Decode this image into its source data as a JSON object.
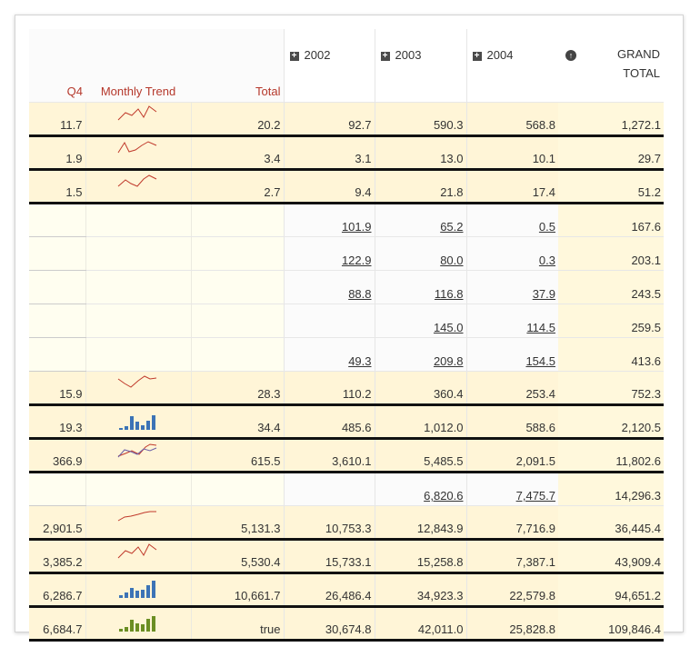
{
  "headers": {
    "q4": "Q4",
    "trend": "Monthly Trend",
    "total": "Total",
    "y2002": "2002",
    "y2003": "2003",
    "y2004": "2004",
    "grand_line1": "GRAND",
    "grand_line2": "TOTAL",
    "expand_glyph": "+",
    "sort_glyph": "↑"
  },
  "rows": [
    {
      "q4": "11.7",
      "total": "20.2",
      "y2002": "92.7",
      "y2003": "590.3",
      "y2004": "568.8",
      "grand": "1,272.1",
      "spark": "line"
    },
    {
      "q4": "1.9",
      "total": "3.4",
      "y2002": "3.1",
      "y2003": "13.0",
      "y2004": "10.1",
      "grand": "29.7",
      "spark": "line"
    },
    {
      "q4": "1.5",
      "total": "2.7",
      "y2002": "9.4",
      "y2003": "21.8",
      "y2004": "17.4",
      "grand": "51.2",
      "spark": "line"
    },
    {
      "q4": "",
      "total": "",
      "y2002": "101.9",
      "y2003": "65.2",
      "y2004": "0.5",
      "grand": "167.6",
      "spark": ""
    },
    {
      "q4": "",
      "total": "",
      "y2002": "122.9",
      "y2003": "80.0",
      "y2004": "0.3",
      "grand": "203.1",
      "spark": ""
    },
    {
      "q4": "",
      "total": "",
      "y2002": "88.8",
      "y2003": "116.8",
      "y2004": "37.9",
      "grand": "243.5",
      "spark": ""
    },
    {
      "q4": "",
      "total": "",
      "y2002": "",
      "y2003": "145.0",
      "y2004": "114.5",
      "grand": "259.5",
      "spark": ""
    },
    {
      "q4": "",
      "total": "",
      "y2002": "49.3",
      "y2003": "209.8",
      "y2004": "154.5",
      "grand": "413.6",
      "spark": ""
    },
    {
      "q4": "15.9",
      "total": "28.3",
      "y2002": "110.2",
      "y2003": "360.4",
      "y2004": "253.4",
      "grand": "752.3",
      "spark": "line"
    },
    {
      "q4": "19.3",
      "total": "34.4",
      "y2002": "485.6",
      "y2003": "1,012.0",
      "y2004": "588.6",
      "grand": "2,120.5",
      "spark": "bar",
      "subtotal": true
    },
    {
      "q4": "366.9",
      "total": "615.5",
      "y2002": "3,610.1",
      "y2003": "5,485.5",
      "y2004": "2,091.5",
      "grand": "11,802.6",
      "spark": "dual"
    },
    {
      "q4": "",
      "total": "",
      "y2002": "",
      "y2003": "6,820.6",
      "y2004": "7,475.7",
      "grand": "14,296.3",
      "spark": ""
    },
    {
      "q4": "2,901.5",
      "total": "5,131.3",
      "y2002": "10,753.3",
      "y2003": "12,843.9",
      "y2004": "7,716.9",
      "grand": "36,445.4",
      "spark": "line"
    },
    {
      "q4": "3,385.2",
      "total": "5,530.4",
      "y2002": "15,733.1",
      "y2003": "15,258.8",
      "y2004": "7,387.1",
      "grand": "43,909.4",
      "spark": "line"
    },
    {
      "q4": "6,286.7",
      "total": "10,661.7",
      "y2002": "26,486.4",
      "y2003": "34,923.3",
      "y2004": "22,579.8",
      "grand": "94,651.2",
      "spark": "bar",
      "subtotal": true
    },
    {
      "q4": "6,684.7",
      "total": true,
      "y2002": "30,674.8",
      "y2003": "42,011.0",
      "y2004": "25,828.8",
      "grand": "109,846.4",
      "spark": "bargreen"
    }
  ],
  "colors": {
    "header_text": "#b5382b",
    "spark_line": "#c0392b",
    "spark_line2": "#6b5fa8",
    "spark_bar": "#3c73b6",
    "spark_bar_green": "#6b8e23",
    "row_tint": "#fffef0",
    "grand_total_bg": "#fff8dc"
  }
}
